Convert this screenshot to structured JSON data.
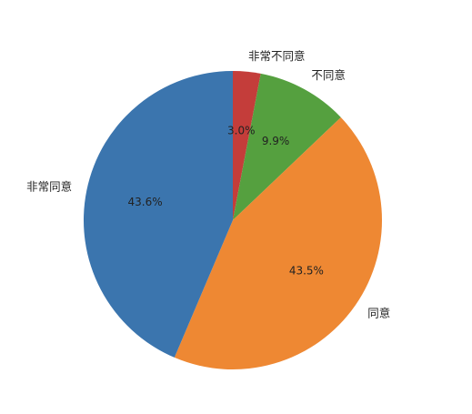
{
  "chart_data": {
    "type": "pie",
    "title": "",
    "categories": [
      "非常不同意",
      "不同意",
      "同意",
      "非常同意"
    ],
    "values": [
      3.0,
      9.9,
      43.5,
      43.6
    ],
    "percent_labels": [
      "3.0%",
      "9.9%",
      "43.5%",
      "43.6%"
    ],
    "colors": [
      "#c43d3a",
      "#55a03f",
      "#ee8833",
      "#3b75ae"
    ],
    "start_angle_deg": 90,
    "direction": "clockwise",
    "legend": "none"
  }
}
